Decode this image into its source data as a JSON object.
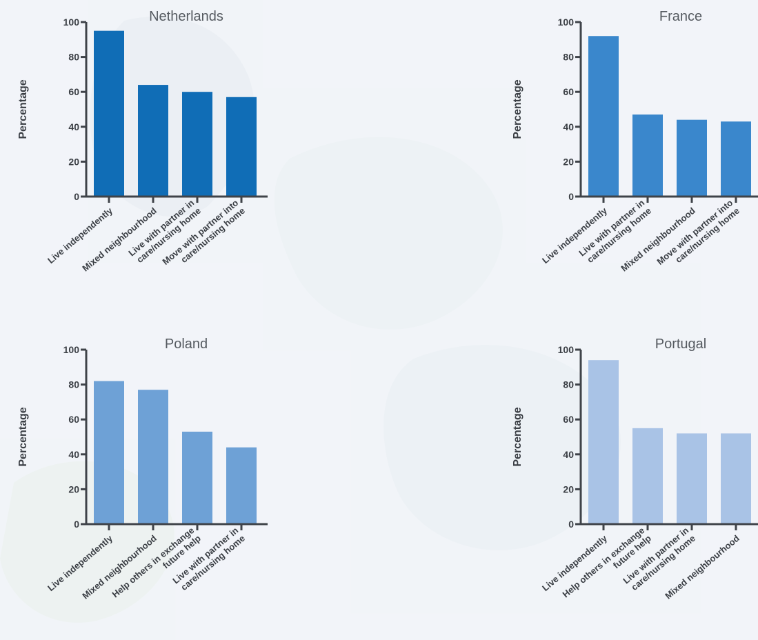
{
  "chart_data": [
    {
      "type": "bar",
      "title": "Netherlands",
      "ylabel": "Percentage",
      "ylim": [
        0,
        100
      ],
      "yticks": [
        "0",
        "20",
        "40",
        "60",
        "80",
        "100"
      ],
      "color": "#106db6",
      "categories": [
        [
          "Live independently"
        ],
        [
          "Mixed neighbourhood"
        ],
        [
          "Live with partner in",
          "care/nursing home"
        ],
        [
          "Move with partner into",
          "care/nursing home"
        ]
      ],
      "values": [
        95,
        64,
        60,
        57
      ]
    },
    {
      "type": "bar",
      "title": "France",
      "ylabel": "Percentage",
      "ylim": [
        0,
        100
      ],
      "yticks": [
        "0",
        "20",
        "40",
        "60",
        "80",
        "100"
      ],
      "color": "#3a87cc",
      "categories": [
        [
          "Live independently"
        ],
        [
          "Live with partner in",
          "care/nursing home"
        ],
        [
          "Mixed neighbourhood"
        ],
        [
          "Move with partner into",
          "care/nursing home"
        ]
      ],
      "values": [
        92,
        47,
        44,
        43
      ]
    },
    {
      "type": "bar",
      "title": "Poland",
      "ylabel": "Percentage",
      "ylim": [
        0,
        100
      ],
      "yticks": [
        "0",
        "20",
        "40",
        "60",
        "80",
        "100"
      ],
      "color": "#6ea1d6",
      "categories": [
        [
          "Live independently"
        ],
        [
          "Mixed neighbourhood"
        ],
        [
          "Help others in exchange",
          "future help"
        ],
        [
          "Live with partner in",
          "care/nursing home"
        ]
      ],
      "values": [
        82,
        77,
        53,
        44
      ]
    },
    {
      "type": "bar",
      "title": "Portugal",
      "ylabel": "Percentage",
      "ylim": [
        0,
        100
      ],
      "yticks": [
        "0",
        "20",
        "40",
        "60",
        "80",
        "100"
      ],
      "color": "#a9c3e6",
      "categories": [
        [
          "Live independently"
        ],
        [
          "Help others in exchange",
          "future help"
        ],
        [
          "Live with partner in",
          "care/nursing home"
        ],
        [
          "Mixed neighbourhood"
        ]
      ],
      "values": [
        94,
        55,
        52,
        52
      ]
    }
  ]
}
